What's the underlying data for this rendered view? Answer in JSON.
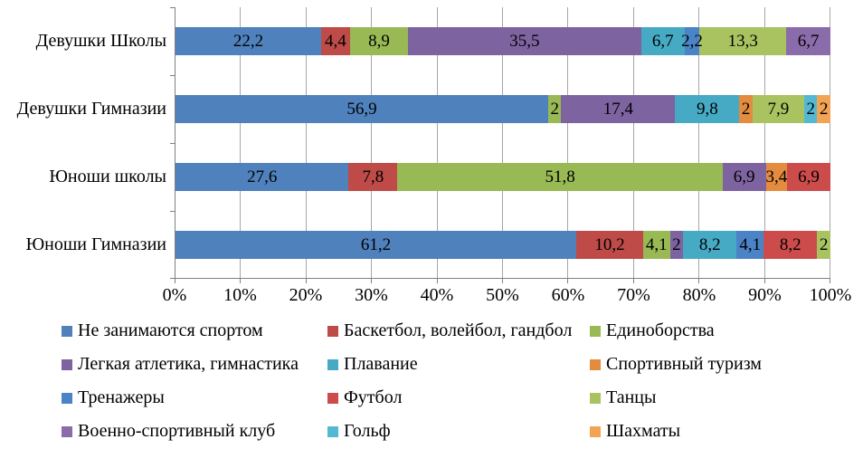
{
  "chart_data": {
    "type": "bar",
    "variant": "horizontal-100%-stacked",
    "title": "",
    "categories": [
      "Девушки Школы",
      "Девушки Гимназии",
      "Юноши школы",
      "Юноши Гимназии"
    ],
    "series": [
      {
        "name": "Не занимаются спортом",
        "color": "#4F81BD",
        "values": [
          22.2,
          56.9,
          27.6,
          61.2
        ]
      },
      {
        "name": "Баскетбол, волейбол, гандбол",
        "color": "#BE4B48",
        "values": [
          4.4,
          0,
          7.8,
          10.2
        ]
      },
      {
        "name": "Единоборства",
        "color": "#98B954",
        "values": [
          8.9,
          2,
          51.8,
          4.1
        ]
      },
      {
        "name": "Легкая атлетика, гимнастика",
        "color": "#7E63A1",
        "values": [
          35.5,
          17.4,
          6.9,
          2
        ]
      },
      {
        "name": "Плавание",
        "color": "#46AAC5",
        "values": [
          6.7,
          9.8,
          0,
          8.2
        ]
      },
      {
        "name": "Спортивный туризм",
        "color": "#E38C3F",
        "values": [
          0,
          2,
          3.4,
          0
        ]
      },
      {
        "name": "Тренажеры",
        "color": "#4A83C6",
        "values": [
          2.2,
          0,
          0,
          4.1
        ]
      },
      {
        "name": "Футбол",
        "color": "#CC4C4C",
        "values": [
          0,
          0,
          6.9,
          8.2
        ]
      },
      {
        "name": "Танцы",
        "color": "#A9C361",
        "values": [
          13.3,
          7.9,
          0,
          2
        ]
      },
      {
        "name": "Военно-спортивный клуб",
        "color": "#8A6CAB",
        "values": [
          6.7,
          0,
          0,
          0
        ]
      },
      {
        "name": "Гольф",
        "color": "#55B8D3",
        "values": [
          0,
          2,
          0,
          0
        ]
      },
      {
        "name": "Шахматы",
        "color": "#F2A354",
        "values": [
          0,
          2,
          0,
          0
        ]
      }
    ],
    "data_labels_shown": true,
    "decimal_separator": ",",
    "x_axis": {
      "tick_labels": [
        "0%",
        "10%",
        "20%",
        "30%",
        "40%",
        "50%",
        "60%",
        "70%",
        "80%",
        "90%",
        "100%"
      ],
      "min": 0,
      "max": 100,
      "gridlines": true
    },
    "legend": {
      "position": "bottom",
      "columns": 3,
      "entries": [
        "Не занимаются спортом",
        "Баскетбол, волейбол, гандбол",
        "Единоборства",
        "Легкая атлетика, гимнастика",
        "Плавание",
        "Спортивный туризм",
        "Тренажеры",
        "Футбол",
        "Танцы",
        "Военно-спортивный клуб",
        "Гольф",
        "Шахматы"
      ]
    },
    "style": {
      "gridline_color": "#A6A6A6",
      "axis_color": "#808080",
      "text_color": "#000000",
      "background": "#FFFFFF"
    }
  }
}
